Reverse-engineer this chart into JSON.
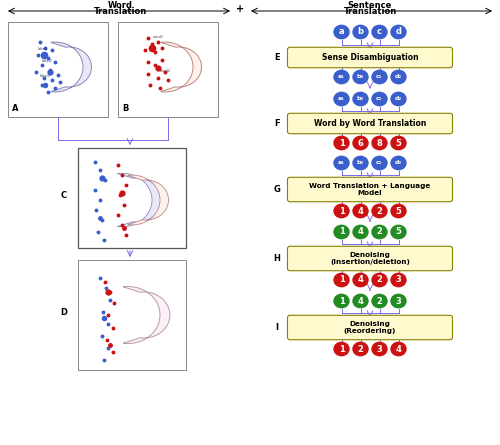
{
  "box_face": "#FFFACD",
  "box_edge": "#8B8000",
  "arrow_color": "#7B68EE",
  "blue": "#3A5FCD",
  "red": "#CC1111",
  "green": "#228B22",
  "purple_arrow": "#9370DB",
  "E_blue_top": [
    "a",
    "b",
    "c",
    "d"
  ],
  "E_blue_mid1": [
    "a₁",
    "b₃",
    "c₁",
    "d₂"
  ],
  "E_blue_mid2": [
    "a₁",
    "b₃",
    "c₁",
    "d₂"
  ],
  "F_red": [
    "1",
    "6",
    "8",
    "5"
  ],
  "G_blue": [
    "a₁",
    "b₃",
    "c₁",
    "d₃"
  ],
  "G_red": [
    "1",
    "4",
    "2",
    "5"
  ],
  "H_green1": [
    "1",
    "4",
    "2",
    "5"
  ],
  "H_red": [
    "1",
    "4",
    "2",
    "3"
  ],
  "I_green": [
    "1",
    "4",
    "2",
    "3"
  ],
  "I_red": [
    "1",
    "2",
    "3",
    "4"
  ],
  "crescent_A_outer": "#8888BB",
  "crescent_A_fill": "#E8E8F5",
  "crescent_B_outer": "#BB8888",
  "crescent_B_fill": "#FFF0E8",
  "crescent_CD_fill": "#F8F0F8",
  "figsize": [
    5.0,
    4.45
  ],
  "dpi": 100
}
